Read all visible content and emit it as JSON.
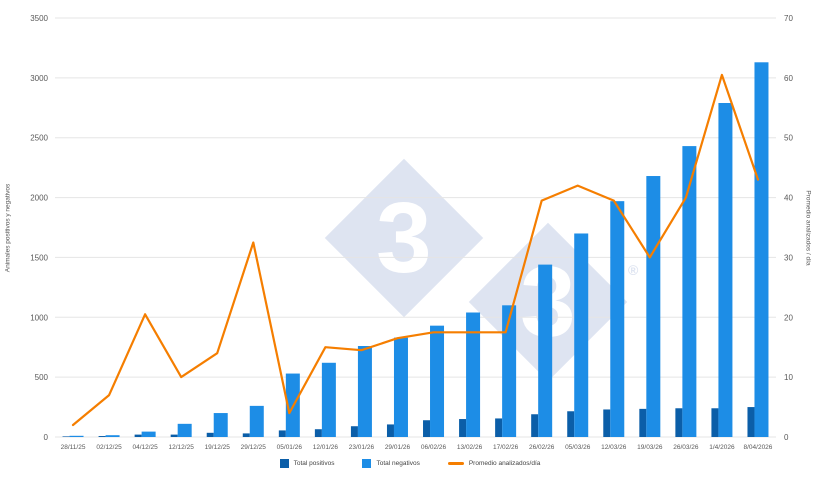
{
  "chart_data": {
    "type": "bar",
    "categories": [
      "28/11/25",
      "02/12/25",
      "04/12/25",
      "12/12/25",
      "19/12/25",
      "29/12/25",
      "05/01/26",
      "12/01/26",
      "23/01/26",
      "29/01/26",
      "06/02/26",
      "13/02/26",
      "17/02/26",
      "26/02/26",
      "05/03/26",
      "12/03/26",
      "19/03/26",
      "26/03/26",
      "1/4/2026",
      "8/04/2026"
    ],
    "series": [
      {
        "name": "Total positivos",
        "type": "bar",
        "axis": "left",
        "color": "#0b5ea8",
        "values": [
          5,
          8,
          20,
          20,
          35,
          30,
          55,
          65,
          90,
          105,
          140,
          150,
          155,
          190,
          215,
          230,
          235,
          240,
          240,
          250
        ]
      },
      {
        "name": "Total negativos",
        "type": "bar",
        "axis": "left",
        "color": "#1d8de6",
        "values": [
          10,
          15,
          45,
          110,
          200,
          260,
          530,
          620,
          760,
          830,
          930,
          1040,
          1100,
          1440,
          1700,
          1970,
          2180,
          2430,
          2790,
          3130
        ]
      },
      {
        "name": "Promedio analizados/día",
        "type": "line",
        "axis": "right",
        "color": "#f57e00",
        "values": [
          2,
          7,
          20.5,
          10,
          14,
          32.5,
          4,
          15,
          14.5,
          16.5,
          17.5,
          17.5,
          17.5,
          39.5,
          42,
          39.5,
          30,
          40,
          60.5,
          43
        ]
      }
    ],
    "left_axis": {
      "label": "Animales positivos y negativos",
      "min": 0,
      "max": 3500,
      "ticks": [
        0,
        500,
        1000,
        1500,
        2000,
        2500,
        3000,
        3500
      ]
    },
    "right_axis": {
      "label": "Promedio analizados / día",
      "min": 0,
      "max": 70,
      "ticks": [
        0,
        10,
        20,
        30,
        40,
        50,
        60,
        70
      ]
    },
    "grid": true,
    "legend_position": "bottom",
    "colors": {
      "grid": "#e5e5e5",
      "tick_text": "#595959",
      "watermark": "#dee4f1"
    }
  },
  "watermark": {
    "glyph1": "3",
    "glyph2": "3",
    "registered": "®"
  }
}
